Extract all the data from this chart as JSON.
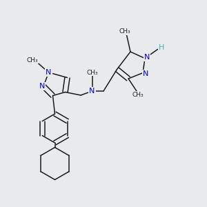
{
  "bg_color": "#e8eaec",
  "bond_color": "#1a1a1a",
  "N_color": "#0000ee",
  "NH_color": "#40b0b0",
  "font_size": 8.0,
  "bond_width": 1.1,
  "dbo": 0.012,
  "xlim": [
    0.0,
    1.0
  ],
  "ylim": [
    0.0,
    1.0
  ]
}
